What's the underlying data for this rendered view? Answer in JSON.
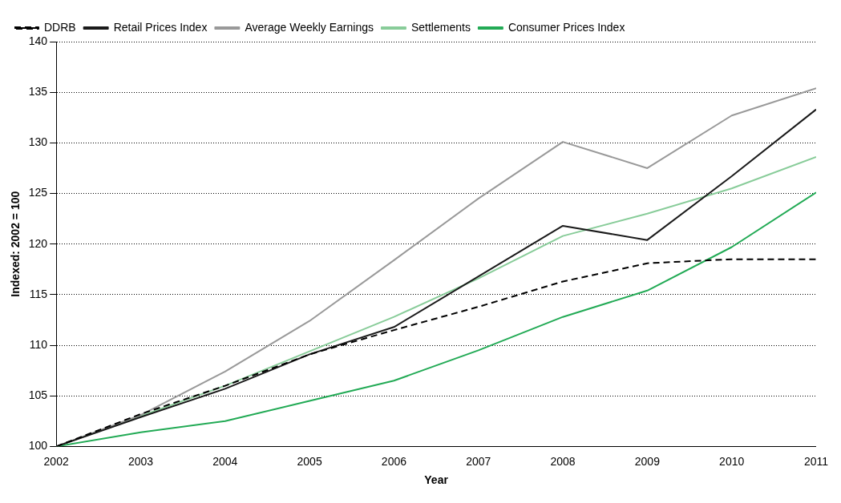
{
  "chart_data": {
    "type": "line",
    "xlabel": "Year",
    "ylabel": "Indexed: 2002 = 100",
    "x": [
      2002,
      2003,
      2004,
      2005,
      2006,
      2007,
      2008,
      2009,
      2010,
      2011
    ],
    "xlim": [
      2002,
      2011
    ],
    "xticks": [
      2002,
      2003,
      2004,
      2005,
      2006,
      2007,
      2008,
      2009,
      2010,
      2011
    ],
    "ylim": [
      100,
      140
    ],
    "yticks": [
      100,
      105,
      110,
      115,
      120,
      125,
      130,
      135,
      140
    ],
    "grid": "y",
    "legend": "top left",
    "marker": "none",
    "series": [
      {
        "name": "DDRB",
        "color": "#000000",
        "line_style": "dashed",
        "values": [
          100,
          103.2,
          106.0,
          109.1,
          111.5,
          113.8,
          116.3,
          118.1,
          118.5,
          118.5
        ]
      },
      {
        "name": "Retail Prices Index",
        "color": "#1a1a1a",
        "line_style": "solid",
        "values": [
          100,
          102.9,
          105.7,
          109.1,
          111.8,
          116.8,
          121.8,
          120.4,
          126.7,
          133.3
        ]
      },
      {
        "name": "Average Weekly Earnings",
        "color": "#999999",
        "line_style": "solid",
        "values": [
          100,
          103.1,
          107.4,
          112.4,
          118.4,
          124.5,
          130.1,
          127.5,
          132.7,
          135.4
        ]
      },
      {
        "name": "Settlements",
        "color": "#88cc99",
        "line_style": "solid",
        "values": [
          100,
          103.0,
          106.0,
          109.4,
          112.8,
          116.6,
          120.8,
          123.0,
          125.5,
          128.6
        ]
      },
      {
        "name": "Consumer Prices Index",
        "color": "#22aa55",
        "line_style": "solid",
        "values": [
          100,
          101.4,
          102.5,
          104.5,
          106.5,
          109.5,
          112.8,
          115.4,
          119.7,
          125.1
        ]
      }
    ]
  }
}
